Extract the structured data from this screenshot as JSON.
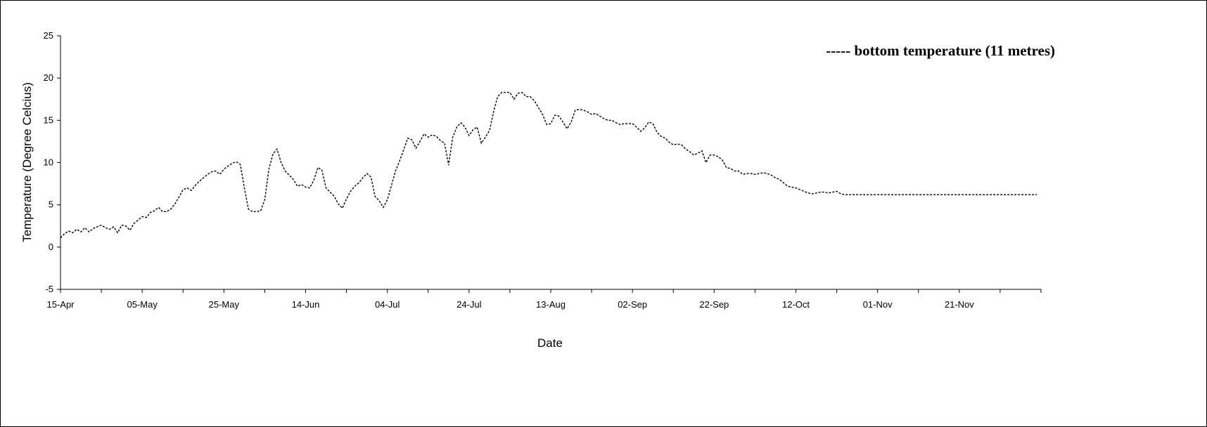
{
  "chart_data": {
    "type": "line",
    "xlabel": "Date",
    "ylabel": "Temperature (Degree Celcius)",
    "ylim": [
      -5,
      25
    ],
    "yticks": [
      "-5",
      "0",
      "5",
      "10",
      "15",
      "20",
      "25"
    ],
    "xticks": [
      "15-Apr",
      "05-May",
      "25-May",
      "14-Jun",
      "04-Jul",
      "24-Jul",
      "13-Aug",
      "02-Sep",
      "22-Sep",
      "12-Oct",
      "01-Nov",
      "21-Nov"
    ],
    "x_range_days": [
      0,
      240
    ],
    "legend": {
      "text": "----- bottom temperature (11 metres)",
      "position": "top-right"
    },
    "grid": false,
    "series": [
      {
        "name": "bottom temperature (11 metres)",
        "style": "dashed",
        "color": "#000000",
        "x_days": [
          0,
          1,
          2,
          3,
          4,
          5,
          6,
          7,
          8,
          9,
          10,
          11,
          12,
          13,
          14,
          15,
          16,
          17,
          18,
          19,
          20,
          21,
          22,
          23,
          24,
          25,
          26,
          27,
          28,
          29,
          30,
          31,
          32,
          33,
          34,
          35,
          36,
          37,
          38,
          39,
          40,
          41,
          42,
          43,
          44,
          45,
          46,
          47,
          48,
          49,
          50,
          51,
          52,
          53,
          54,
          55,
          56,
          57,
          58,
          59,
          60,
          61,
          62,
          63,
          64,
          65,
          66,
          67,
          68,
          69,
          70,
          71,
          72,
          73,
          74,
          75,
          76,
          77,
          78,
          79,
          80,
          81,
          82,
          83,
          84,
          85,
          86,
          87,
          88,
          89,
          90,
          91,
          92,
          93,
          94,
          95,
          96,
          97,
          98,
          99,
          100,
          101,
          102,
          103,
          104,
          105,
          106,
          107,
          108,
          109,
          110,
          111,
          112,
          113,
          114,
          115,
          116,
          117,
          118,
          119,
          120,
          121,
          122,
          123,
          124,
          125,
          126,
          127,
          128,
          129,
          130,
          131,
          132,
          133,
          134,
          135,
          136,
          137,
          138,
          139,
          140,
          141,
          142,
          143,
          144,
          145,
          146,
          147,
          148,
          149,
          150,
          151,
          152,
          153,
          154,
          155,
          156,
          157,
          158,
          159,
          160,
          161,
          162,
          163,
          164,
          165,
          166,
          167,
          168,
          169,
          170,
          171,
          172,
          173,
          174,
          175,
          176,
          177,
          178,
          179,
          180,
          181,
          182,
          183,
          184,
          185,
          186,
          187,
          188,
          189,
          190,
          191,
          192,
          193,
          194,
          195,
          196,
          197,
          198,
          199,
          200,
          201,
          202,
          203,
          204,
          205,
          206,
          207,
          208,
          209,
          210,
          211,
          212,
          213,
          214,
          215,
          216,
          217,
          218,
          219,
          220,
          221,
          222,
          223,
          224,
          225,
          226,
          227,
          228,
          229,
          230,
          231,
          232,
          233,
          234,
          235,
          236,
          237,
          238,
          239
        ],
        "values": [
          1.1,
          1.6,
          1.9,
          1.7,
          2.1,
          1.8,
          2.3,
          1.8,
          2.2,
          2.4,
          2.6,
          2.3,
          2.1,
          2.4,
          1.7,
          2.6,
          2.5,
          2.0,
          2.8,
          3.2,
          3.6,
          3.5,
          4.1,
          4.3,
          4.7,
          4.2,
          4.2,
          4.5,
          5.1,
          5.9,
          6.8,
          7.0,
          6.7,
          7.3,
          7.8,
          8.2,
          8.6,
          8.9,
          9.0,
          8.6,
          9.2,
          9.6,
          9.9,
          10.1,
          9.8,
          7.0,
          4.5,
          4.2,
          4.2,
          4.3,
          5.6,
          9.2,
          11.0,
          11.6,
          10.0,
          9.0,
          8.5,
          8.0,
          7.2,
          7.4,
          7.1,
          7.0,
          7.9,
          9.4,
          9.1,
          7.0,
          6.5,
          6.0,
          5.1,
          4.6,
          5.7,
          6.6,
          7.2,
          7.6,
          8.2,
          8.7,
          8.3,
          6.0,
          5.5,
          4.7,
          5.6,
          7.3,
          9.0,
          10.2,
          11.5,
          12.9,
          12.7,
          11.7,
          12.5,
          13.4,
          13.0,
          13.3,
          13.1,
          12.6,
          12.3,
          9.7,
          13.0,
          14.2,
          14.7,
          14.2,
          13.2,
          13.9,
          14.2,
          12.3,
          13.0,
          13.8,
          16.0,
          17.8,
          18.3,
          18.3,
          18.3,
          17.5,
          18.2,
          18.3,
          17.8,
          17.8,
          17.3,
          16.5,
          15.7,
          14.5,
          14.6,
          15.6,
          15.5,
          14.8,
          14.0,
          14.8,
          16.2,
          16.3,
          16.2,
          16.0,
          15.7,
          15.8,
          15.5,
          15.2,
          15.0,
          15.0,
          14.7,
          14.5,
          14.6,
          14.6,
          14.6,
          14.2,
          13.7,
          14.1,
          14.8,
          14.6,
          13.6,
          13.1,
          12.9,
          12.4,
          12.1,
          12.2,
          12.1,
          11.6,
          11.3,
          10.9,
          11.1,
          11.4,
          10.0,
          10.9,
          10.9,
          10.7,
          10.3,
          9.4,
          9.3,
          9.0,
          9.0,
          8.6,
          8.7,
          8.7,
          8.6,
          8.7,
          8.8,
          8.7,
          8.5,
          8.2,
          8.0,
          7.6,
          7.2,
          7.1,
          7.0,
          6.8,
          6.6,
          6.4,
          6.3,
          6.4,
          6.5,
          6.5,
          6.4,
          6.5,
          6.6,
          6.3,
          6.2,
          6.2,
          6.2,
          6.2,
          6.2,
          6.2,
          6.2,
          6.2,
          6.2,
          6.2,
          6.2,
          6.2,
          6.2,
          6.2,
          6.2,
          6.2,
          6.2,
          6.2,
          6.2,
          6.2,
          6.2,
          6.2,
          6.2,
          6.2,
          6.2,
          6.2,
          6.2,
          6.2,
          6.2,
          6.2,
          6.2,
          6.2,
          6.2,
          6.2,
          6.2,
          6.2,
          6.2,
          6.2,
          6.2,
          6.2,
          6.2,
          6.2,
          6.2,
          6.2,
          6.2,
          6.2,
          6.2,
          6.2
        ]
      }
    ]
  }
}
